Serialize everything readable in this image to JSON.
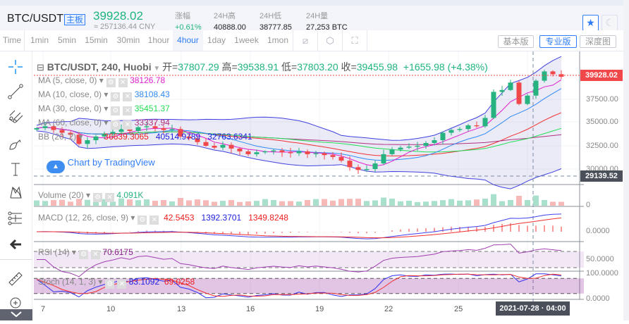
{
  "header": {
    "pair": "BTC/USDT",
    "badge": "主板",
    "price": "39928.02",
    "cny": "≈ 257136.44 CNY",
    "stats": [
      {
        "label": "涨幅",
        "value": "+0.61%"
      },
      {
        "label": "24H高",
        "value": "40888.00"
      },
      {
        "label": "24H低",
        "value": "38777.85"
      },
      {
        "label": "24H量",
        "value": "27,253 BTC"
      }
    ],
    "favorite_icon": "star-icon",
    "theme_icon": "moon-icon"
  },
  "toolbar": {
    "intervals": [
      "Time",
      "1min",
      "5min",
      "15min",
      "30min",
      "1hour",
      "4hour",
      "1day",
      "1week",
      "1mon"
    ],
    "active": "4hour",
    "versions": [
      "基本版",
      "专业版",
      "深度图"
    ],
    "active_version": "专业版"
  },
  "legend": {
    "symbol": "BTC/USDT, 240, Huobi",
    "open_label": "开=",
    "open": "37807.29",
    "high_label": "高=",
    "high": "39538.91",
    "low_label": "低=",
    "low": "37803.20",
    "close_label": "收=",
    "close": "39455.98",
    "change": "+1655.98 (+4.38%)",
    "ma": [
      {
        "label": "MA (5, close, 0)",
        "value": "38126.78",
        "color": "#e020d0"
      },
      {
        "label": "MA (10, close, 0)",
        "value": "38108.43",
        "color": "#2f8af6"
      },
      {
        "label": "MA (30, close, 0)",
        "value": "35451.37",
        "color": "#22dd55"
      },
      {
        "label": "MA (60, close, 0)",
        "value": "33337.94",
        "color": "#b03080"
      }
    ],
    "bb": {
      "label": "BB (20, 2)",
      "values": [
        "36639.3065",
        "40514.9789",
        "32763.6341"
      ]
    },
    "watermark": "Chart by TradingView",
    "volume": {
      "label": "Volume (20)",
      "value": "4.091K"
    },
    "macd": {
      "label": "MACD (12, 26, close, 9)",
      "values": [
        "42.5453",
        "1392.3701",
        "1349.8248"
      ]
    },
    "rsi": {
      "label": "RSI (14)",
      "value": "70.6175"
    },
    "stoch": {
      "label": "Stoch (14, 1, 3)",
      "values": [
        "83.1092",
        "69.0258"
      ]
    }
  },
  "axis": {
    "price_ticks": [
      "37500.00",
      "35000.00",
      "32500.00",
      "30000.00"
    ],
    "last_price": "39928.02",
    "crosshair_price": "29139.52",
    "volume_tick": "0",
    "macd_tick": "0.0000",
    "rsi_tick": "50.0000",
    "stoch_ticks": [
      "100.0000",
      "0.0000"
    ],
    "dates": [
      "7",
      "10",
      "13",
      "16",
      "19",
      "22",
      "25"
    ],
    "crosshair_time": "2021-07-28 · 04:00"
  },
  "colors": {
    "up": "#26b37f",
    "down": "#f0484a",
    "accent": "#2f7df6"
  },
  "chart_data": {
    "type": "candlestick",
    "interval": "4hour",
    "ylim": [
      28500,
      41500
    ],
    "closes": [
      34400,
      34600,
      34200,
      33900,
      33700,
      32700,
      33100,
      33500,
      33800,
      34000,
      34300,
      34100,
      34500,
      34600,
      34400,
      34200,
      34300,
      33500,
      33300,
      32900,
      32500,
      32300,
      32600,
      32200,
      31900,
      31600,
      31800,
      31900,
      32000,
      31800,
      31700,
      31900,
      31600,
      31700,
      31500,
      31300,
      30900,
      30200,
      29900,
      30000,
      30600,
      31600,
      32100,
      32300,
      32400,
      32500,
      32800,
      33100,
      33900,
      34200,
      34300,
      34700,
      34600,
      35500,
      38300,
      38500,
      39300,
      37000,
      37900,
      39500,
      40500,
      40200,
      39928
    ]
  }
}
